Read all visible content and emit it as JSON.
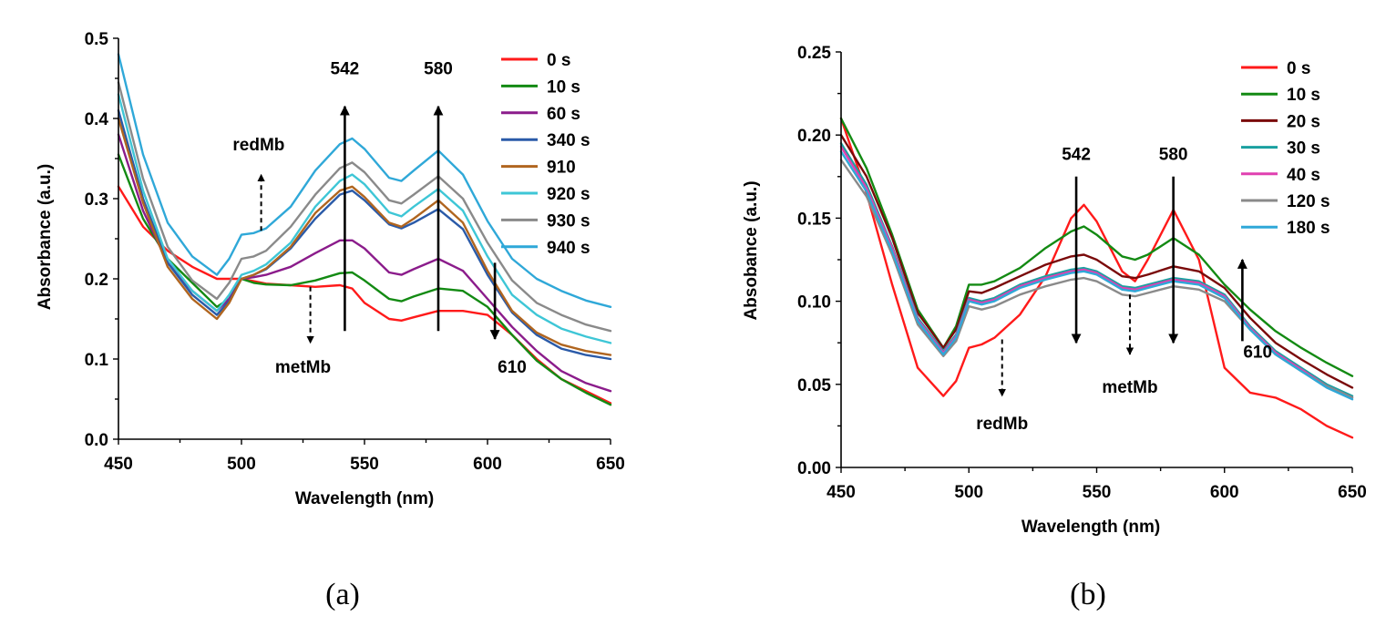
{
  "colors": {
    "red": "#ff1a1a",
    "green": "#138a13",
    "purple": "#8b1c8b",
    "blue": "#2a5aa8",
    "brown": "#b0651f",
    "cyan": "#3ec6d6",
    "gray": "#8a8a8a",
    "skyblue": "#2fa8d8",
    "darkred": "#7a0a0a",
    "teal": "#1aa0a0",
    "magenta": "#e040b0"
  },
  "chart_data": [
    {
      "type": "line",
      "panel_label": "(a)",
      "title": "",
      "xlabel": "Wavelength (nm)",
      "ylabel": "Absorbance (a.u.)",
      "xlim": [
        450,
        650
      ],
      "ylim": [
        0.0,
        0.5
      ],
      "xticks": [
        "450",
        "500",
        "550",
        "600",
        "650"
      ],
      "yticks": [
        "0.0",
        "0.1",
        "0.2",
        "0.3",
        "0.4",
        "0.5"
      ],
      "legend_position": "top-right",
      "x": [
        450,
        460,
        470,
        480,
        490,
        495,
        500,
        505,
        510,
        520,
        530,
        540,
        545,
        550,
        560,
        565,
        570,
        580,
        590,
        600,
        610,
        620,
        630,
        640,
        650
      ],
      "series": [
        {
          "name": "0 s",
          "color": "red",
          "values": [
            0.315,
            0.265,
            0.235,
            0.215,
            0.2,
            0.2,
            0.2,
            0.197,
            0.194,
            0.192,
            0.19,
            0.192,
            0.188,
            0.17,
            0.15,
            0.148,
            0.152,
            0.16,
            0.16,
            0.155,
            0.13,
            0.1,
            0.075,
            0.06,
            0.045
          ]
        },
        {
          "name": "10 s",
          "color": "green",
          "values": [
            0.355,
            0.275,
            0.225,
            0.195,
            0.165,
            0.175,
            0.2,
            0.195,
            0.193,
            0.192,
            0.198,
            0.207,
            0.208,
            0.198,
            0.175,
            0.172,
            0.178,
            0.188,
            0.185,
            0.165,
            0.13,
            0.098,
            0.075,
            0.058,
            0.043
          ]
        },
        {
          "name": "60 s",
          "color": "purple",
          "values": [
            0.38,
            0.285,
            0.22,
            0.185,
            0.16,
            0.175,
            0.2,
            0.202,
            0.205,
            0.215,
            0.232,
            0.248,
            0.248,
            0.238,
            0.208,
            0.205,
            0.212,
            0.225,
            0.21,
            0.175,
            0.14,
            0.11,
            0.085,
            0.07,
            0.06
          ]
        },
        {
          "name": "340 s",
          "color": "blue",
          "values": [
            0.41,
            0.3,
            0.22,
            0.18,
            0.155,
            0.172,
            0.2,
            0.205,
            0.212,
            0.238,
            0.275,
            0.305,
            0.31,
            0.298,
            0.268,
            0.263,
            0.27,
            0.287,
            0.262,
            0.205,
            0.158,
            0.13,
            0.113,
            0.105,
            0.1
          ]
        },
        {
          "name": "910",
          "color": "brown",
          "values": [
            0.4,
            0.295,
            0.215,
            0.175,
            0.15,
            0.17,
            0.2,
            0.205,
            0.213,
            0.24,
            0.282,
            0.31,
            0.315,
            0.302,
            0.27,
            0.265,
            0.275,
            0.298,
            0.27,
            0.21,
            0.16,
            0.133,
            0.118,
            0.11,
            0.105
          ]
        },
        {
          "name": "920 s",
          "color": "cyan",
          "values": [
            0.43,
            0.31,
            0.225,
            0.185,
            0.16,
            0.18,
            0.205,
            0.21,
            0.218,
            0.245,
            0.29,
            0.322,
            0.33,
            0.318,
            0.283,
            0.278,
            0.29,
            0.312,
            0.285,
            0.228,
            0.18,
            0.155,
            0.138,
            0.128,
            0.12
          ]
        },
        {
          "name": "930 s",
          "color": "gray",
          "values": [
            0.445,
            0.325,
            0.24,
            0.198,
            0.175,
            0.195,
            0.225,
            0.228,
            0.235,
            0.265,
            0.305,
            0.338,
            0.345,
            0.333,
            0.298,
            0.294,
            0.305,
            0.328,
            0.3,
            0.245,
            0.198,
            0.17,
            0.155,
            0.143,
            0.135
          ]
        },
        {
          "name": "940 s",
          "color": "skyblue",
          "values": [
            0.48,
            0.355,
            0.27,
            0.228,
            0.205,
            0.225,
            0.255,
            0.257,
            0.263,
            0.29,
            0.335,
            0.368,
            0.375,
            0.362,
            0.326,
            0.322,
            0.335,
            0.36,
            0.33,
            0.272,
            0.225,
            0.2,
            0.185,
            0.173,
            0.165
          ]
        }
      ],
      "annotations": [
        {
          "text": "542",
          "x": 542,
          "y": 0.455
        },
        {
          "text": "580",
          "x": 580,
          "y": 0.455
        },
        {
          "text": "redMb",
          "x": 507,
          "y": 0.36
        },
        {
          "text": "metMb",
          "x": 525,
          "y": 0.083
        },
        {
          "text": "610",
          "x": 610,
          "y": 0.083
        }
      ],
      "arrows": [
        {
          "x": 542,
          "from": 0.135,
          "to": 0.415,
          "style": "solid"
        },
        {
          "x": 580,
          "from": 0.135,
          "to": 0.415,
          "style": "solid"
        },
        {
          "x": 508,
          "from": 0.26,
          "to": 0.33,
          "style": "dashed"
        },
        {
          "x": 528,
          "from": 0.19,
          "to": 0.12,
          "style": "dashed"
        },
        {
          "x": 603,
          "from": 0.22,
          "to": 0.125,
          "style": "solid"
        }
      ]
    },
    {
      "type": "line",
      "panel_label": "(b)",
      "title": "",
      "xlabel": "Wavelength (nm)",
      "ylabel": "Absobance (a.u.)",
      "xlim": [
        450,
        650
      ],
      "ylim": [
        0.0,
        0.25
      ],
      "xticks": [
        "450",
        "500",
        "550",
        "600",
        "650"
      ],
      "yticks": [
        "0.00",
        "0.05",
        "0.10",
        "0.15",
        "0.20",
        "0.25"
      ],
      "legend_position": "top-right",
      "x": [
        450,
        460,
        470,
        480,
        490,
        495,
        500,
        505,
        510,
        520,
        530,
        540,
        545,
        550,
        560,
        565,
        570,
        580,
        590,
        600,
        610,
        620,
        630,
        640,
        650
      ],
      "series": [
        {
          "name": "0 s",
          "color": "red",
          "values": [
            0.21,
            0.165,
            0.11,
            0.06,
            0.043,
            0.052,
            0.072,
            0.074,
            0.078,
            0.092,
            0.115,
            0.15,
            0.158,
            0.148,
            0.118,
            0.112,
            0.125,
            0.155,
            0.125,
            0.06,
            0.045,
            0.042,
            0.035,
            0.025,
            0.018
          ]
        },
        {
          "name": "10 s",
          "color": "green",
          "values": [
            0.21,
            0.18,
            0.14,
            0.095,
            0.072,
            0.085,
            0.11,
            0.11,
            0.112,
            0.12,
            0.132,
            0.142,
            0.145,
            0.14,
            0.127,
            0.125,
            0.128,
            0.138,
            0.128,
            0.11,
            0.095,
            0.082,
            0.072,
            0.063,
            0.055
          ]
        },
        {
          "name": "20 s",
          "color": "darkred",
          "values": [
            0.2,
            0.175,
            0.138,
            0.093,
            0.072,
            0.083,
            0.106,
            0.105,
            0.108,
            0.115,
            0.122,
            0.127,
            0.128,
            0.125,
            0.115,
            0.114,
            0.116,
            0.121,
            0.118,
            0.108,
            0.09,
            0.075,
            0.065,
            0.056,
            0.048
          ]
        },
        {
          "name": "30 s",
          "color": "teal",
          "values": [
            0.195,
            0.17,
            0.133,
            0.09,
            0.07,
            0.08,
            0.102,
            0.1,
            0.102,
            0.11,
            0.115,
            0.119,
            0.12,
            0.118,
            0.109,
            0.108,
            0.11,
            0.114,
            0.112,
            0.104,
            0.085,
            0.07,
            0.06,
            0.05,
            0.043
          ]
        },
        {
          "name": "40 s",
          "color": "magenta",
          "values": [
            0.193,
            0.168,
            0.132,
            0.089,
            0.069,
            0.079,
            0.101,
            0.099,
            0.101,
            0.109,
            0.114,
            0.118,
            0.119,
            0.117,
            0.108,
            0.107,
            0.109,
            0.113,
            0.111,
            0.103,
            0.084,
            0.069,
            0.059,
            0.049,
            0.042
          ]
        },
        {
          "name": "120 s",
          "color": "gray",
          "values": [
            0.185,
            0.163,
            0.128,
            0.086,
            0.067,
            0.076,
            0.097,
            0.095,
            0.097,
            0.104,
            0.109,
            0.113,
            0.114,
            0.112,
            0.104,
            0.103,
            0.105,
            0.109,
            0.107,
            0.1,
            0.083,
            0.068,
            0.058,
            0.049,
            0.042
          ]
        },
        {
          "name": "180 s",
          "color": "skyblue",
          "values": [
            0.19,
            0.166,
            0.13,
            0.088,
            0.068,
            0.078,
            0.1,
            0.098,
            0.1,
            0.108,
            0.113,
            0.117,
            0.118,
            0.116,
            0.107,
            0.106,
            0.108,
            0.112,
            0.11,
            0.102,
            0.083,
            0.068,
            0.058,
            0.048,
            0.041
          ]
        }
      ],
      "annotations": [
        {
          "text": "542",
          "x": 542,
          "y": 0.185
        },
        {
          "text": "580",
          "x": 580,
          "y": 0.185
        },
        {
          "text": "redMb",
          "x": 513,
          "y": 0.023
        },
        {
          "text": "metMb",
          "x": 563,
          "y": 0.045
        },
        {
          "text": "610",
          "x": 613,
          "y": 0.066
        }
      ],
      "arrows": [
        {
          "x": 542,
          "from": 0.175,
          "to": 0.075,
          "style": "solid"
        },
        {
          "x": 580,
          "from": 0.175,
          "to": 0.075,
          "style": "solid"
        },
        {
          "x": 513,
          "from": 0.077,
          "to": 0.043,
          "style": "dashed"
        },
        {
          "x": 563,
          "from": 0.104,
          "to": 0.068,
          "style": "dashed"
        },
        {
          "x": 607,
          "from": 0.076,
          "to": 0.125,
          "style": "solid"
        }
      ]
    }
  ]
}
